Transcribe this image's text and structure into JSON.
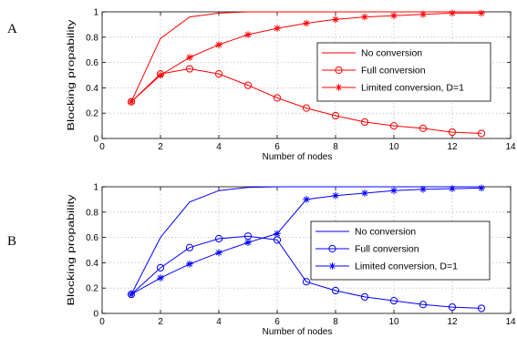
{
  "chart_data": [
    {
      "type": "line",
      "panel_label": "A",
      "color": "#ff0000",
      "xlabel": "Number of nodes",
      "ylabel": "Blocking propability",
      "xlim": [
        0,
        14
      ],
      "ylim": [
        0,
        1
      ],
      "xticks": [
        "0",
        "2",
        "4",
        "6",
        "8",
        "10",
        "12",
        "14"
      ],
      "yticks": [
        "0",
        "0.2",
        "0.4",
        "0.6",
        "0.8",
        "1"
      ],
      "grid": true,
      "legend_position": "center-right",
      "x": [
        1,
        2,
        3,
        4,
        5,
        6,
        7,
        8,
        9,
        10,
        11,
        12,
        13
      ],
      "series": [
        {
          "name": "No conversion",
          "marker": "none",
          "values": [
            0.29,
            0.79,
            0.96,
            0.99,
            1.0,
            1.0,
            1.0,
            1.0,
            1.0,
            1.0,
            1.0,
            1.0,
            1.0
          ]
        },
        {
          "name": "Full conversion",
          "marker": "circle",
          "values": [
            0.29,
            0.51,
            0.55,
            0.51,
            0.42,
            0.32,
            0.24,
            0.18,
            0.13,
            0.1,
            0.08,
            0.05,
            0.04
          ]
        },
        {
          "name": "Limited conversion, D=1",
          "marker": "star",
          "values": [
            0.29,
            0.5,
            0.64,
            0.74,
            0.82,
            0.87,
            0.91,
            0.94,
            0.96,
            0.97,
            0.98,
            0.99,
            0.99
          ]
        }
      ]
    },
    {
      "type": "line",
      "panel_label": "B",
      "color": "#0000ff",
      "xlabel": "Number of nodes",
      "ylabel": "Blocking propability",
      "xlim": [
        0,
        14
      ],
      "ylim": [
        0,
        1
      ],
      "xticks": [
        "0",
        "2",
        "4",
        "6",
        "8",
        "10",
        "12",
        "14"
      ],
      "yticks": [
        "0",
        "0.2",
        "0.4",
        "0.6",
        "0.8",
        "1"
      ],
      "grid": true,
      "legend_position": "center-right",
      "x": [
        1,
        2,
        3,
        4,
        5,
        6,
        7,
        8,
        9,
        10,
        11,
        12,
        13
      ],
      "series": [
        {
          "name": "No conversion",
          "marker": "none",
          "values": [
            0.15,
            0.6,
            0.88,
            0.97,
            0.995,
            1.0,
            1.0,
            1.0,
            1.0,
            1.0,
            1.0,
            1.0,
            1.0
          ]
        },
        {
          "name": "Full conversion",
          "marker": "circle",
          "values": [
            0.15,
            0.36,
            0.52,
            0.59,
            0.61,
            0.58,
            0.25,
            0.18,
            0.13,
            0.1,
            0.07,
            0.05,
            0.04
          ]
        },
        {
          "name": "Limited conversion, D=1",
          "marker": "star",
          "values": [
            0.15,
            0.28,
            0.39,
            0.48,
            0.56,
            0.63,
            0.9,
            0.93,
            0.95,
            0.97,
            0.98,
            0.985,
            0.99
          ]
        }
      ]
    }
  ]
}
